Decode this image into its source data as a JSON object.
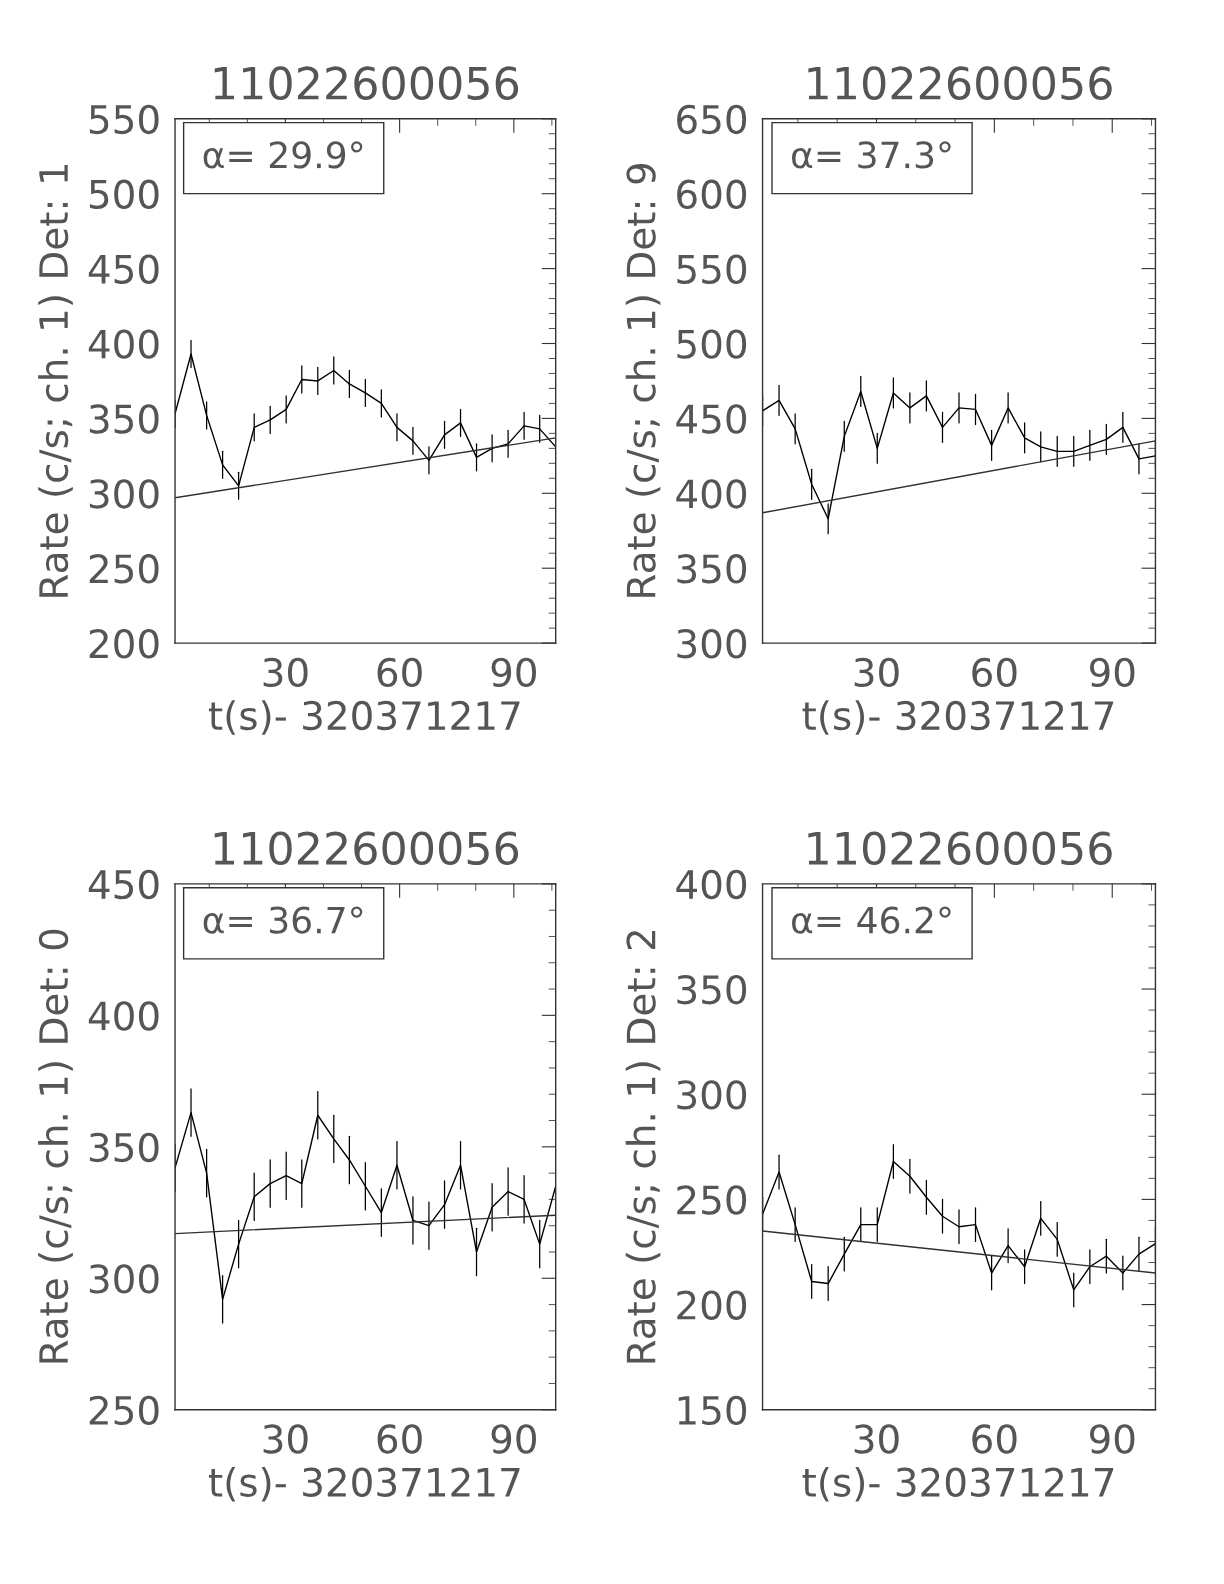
{
  "chart_data": [
    {
      "type": "line",
      "title": "11022600056",
      "xlabel": "t(s)- 320371217",
      "ylabel": "Rate (c/s; ch. 1) Det: 1",
      "annotations": [
        "α= 29.9°"
      ],
      "xlim": [
        1,
        101
      ],
      "xticks": [
        30,
        60,
        90
      ],
      "ylim": [
        200,
        550
      ],
      "yticks": [
        200,
        250,
        300,
        350,
        400,
        450,
        500,
        550
      ],
      "grid": false,
      "legend": false,
      "series": [
        {
          "color": "#000000",
          "x": [
            1,
            5.2,
            9.3,
            13.5,
            17.7,
            21.8,
            26,
            30.2,
            34.3,
            38.5,
            42.7,
            46.8,
            51,
            55.2,
            59.3,
            63.5,
            67.7,
            71.8,
            76,
            80.2,
            84.3,
            88.5,
            92.7,
            96.8,
            101
          ],
          "values": [
            353,
            393,
            352,
            319,
            305,
            344,
            349,
            356,
            376,
            375,
            382,
            373,
            367,
            360,
            344,
            335,
            322,
            339,
            347,
            324,
            330,
            333,
            345,
            343,
            331
          ],
          "errors": [
            9,
            9,
            9,
            9,
            9,
            9,
            9,
            9,
            9,
            9,
            9,
            9,
            9,
            9,
            9,
            9,
            9,
            9,
            9,
            9,
            9,
            9,
            9,
            9,
            9
          ]
        },
        {
          "color": "#303030",
          "x": [
            1,
            101
          ],
          "values": [
            297,
            337
          ]
        }
      ]
    },
    {
      "type": "line",
      "title": "11022600056",
      "xlabel": "t(s)- 320371217",
      "ylabel": "Rate (c/s; ch. 1) Det: 9",
      "annotations": [
        "α= 37.3°"
      ],
      "xlim": [
        1,
        101
      ],
      "xticks": [
        30,
        60,
        90
      ],
      "ylim": [
        300,
        650
      ],
      "yticks": [
        300,
        350,
        400,
        450,
        500,
        550,
        600,
        650
      ],
      "grid": false,
      "legend": false,
      "series": [
        {
          "color": "#000000",
          "x": [
            1,
            5.2,
            9.3,
            13.5,
            17.7,
            21.8,
            26,
            30.2,
            34.3,
            38.5,
            42.7,
            46.8,
            51,
            55.2,
            59.3,
            63.5,
            67.7,
            71.8,
            76,
            80.2,
            84.3,
            88.5,
            92.7,
            96.8,
            101
          ],
          "values": [
            455,
            462,
            443,
            406,
            383,
            438,
            468,
            430,
            467,
            457,
            465,
            444,
            457,
            456,
            432,
            457,
            437,
            431,
            428,
            428,
            432,
            436,
            444,
            423,
            425
          ],
          "errors": [
            10,
            10,
            10,
            10,
            10,
            10,
            10,
            10,
            10,
            10,
            10,
            10,
            10,
            10,
            10,
            10,
            10,
            10,
            10,
            10,
            10,
            10,
            10,
            10,
            10
          ]
        },
        {
          "color": "#303030",
          "x": [
            1,
            101
          ],
          "values": [
            387,
            435
          ]
        }
      ]
    },
    {
      "type": "line",
      "title": "11022600056",
      "xlabel": "t(s)- 320371217",
      "ylabel": "Rate (c/s; ch. 1) Det: 0",
      "annotations": [
        "α= 36.7°"
      ],
      "xlim": [
        1,
        101
      ],
      "xticks": [
        30,
        60,
        90
      ],
      "ylim": [
        250,
        450
      ],
      "yticks": [
        250,
        300,
        350,
        400,
        450
      ],
      "grid": false,
      "legend": false,
      "series": [
        {
          "color": "#000000",
          "x": [
            1,
            5.2,
            9.3,
            13.5,
            17.7,
            21.8,
            26,
            30.2,
            34.3,
            38.5,
            42.7,
            46.8,
            51,
            55.2,
            59.3,
            63.5,
            67.7,
            71.8,
            76,
            80.2,
            84.3,
            88.5,
            92.7,
            96.8,
            101
          ],
          "values": [
            342,
            363,
            340,
            292,
            313,
            331,
            336,
            339,
            336,
            362,
            353,
            345,
            335,
            325,
            343,
            322,
            320,
            328,
            343,
            310,
            327,
            333,
            330,
            313,
            335
          ],
          "errors": [
            9,
            9,
            9,
            9,
            9,
            9,
            9,
            9,
            9,
            9,
            9,
            9,
            9,
            9,
            9,
            9,
            9,
            9,
            9,
            9,
            9,
            9,
            9,
            9,
            9
          ]
        },
        {
          "color": "#303030",
          "x": [
            1,
            101
          ],
          "values": [
            317,
            324
          ]
        }
      ]
    },
    {
      "type": "line",
      "title": "11022600056",
      "xlabel": "t(s)- 320371217",
      "ylabel": "Rate (c/s; ch. 1) Det: 2",
      "annotations": [
        "α= 46.2°"
      ],
      "xlim": [
        1,
        101
      ],
      "xticks": [
        30,
        60,
        90
      ],
      "ylim": [
        150,
        400
      ],
      "yticks": [
        150,
        200,
        250,
        300,
        350,
        400
      ],
      "grid": false,
      "legend": false,
      "series": [
        {
          "color": "#000000",
          "x": [
            1,
            5.2,
            9.3,
            13.5,
            17.7,
            21.8,
            26,
            30.2,
            34.3,
            38.5,
            42.7,
            46.8,
            51,
            55.2,
            59.3,
            63.5,
            67.7,
            71.8,
            76,
            80.2,
            84.3,
            88.5,
            92.7,
            96.8,
            101
          ],
          "values": [
            243,
            263,
            238,
            211,
            210,
            224,
            238,
            238,
            268,
            261,
            251,
            242,
            237,
            238,
            215,
            228,
            218,
            241,
            231,
            207,
            218,
            223,
            215,
            224,
            229
          ],
          "errors": [
            8,
            8,
            8,
            8,
            8,
            8,
            8,
            8,
            8,
            8,
            8,
            8,
            8,
            8,
            8,
            8,
            8,
            8,
            8,
            8,
            8,
            8,
            8,
            8,
            8
          ]
        },
        {
          "color": "#303030",
          "x": [
            1,
            101
          ],
          "values": [
            235,
            215
          ]
        }
      ]
    }
  ]
}
